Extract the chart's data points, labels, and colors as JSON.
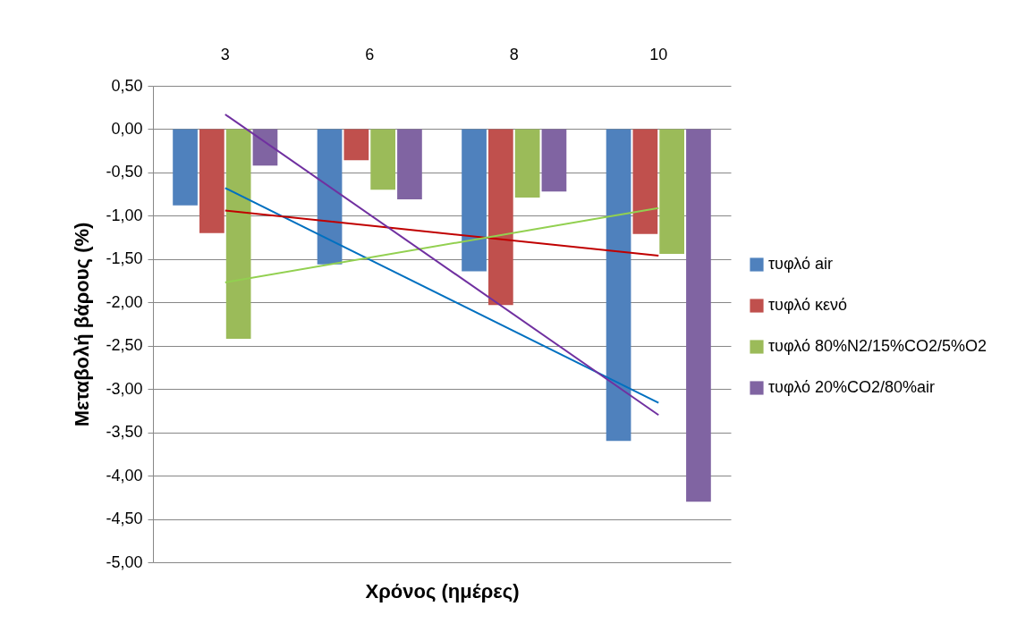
{
  "chart_data": {
    "type": "bar",
    "xlabel": "Χρόνος (ημέρες)",
    "ylabel": "Μεταβολή βάρους (%)",
    "categories": [
      "3",
      "6",
      "8",
      "10"
    ],
    "series": [
      {
        "name": "τυφλό air",
        "color": "#4f81bd",
        "values": [
          -0.88,
          -1.56,
          -1.64,
          -3.6
        ]
      },
      {
        "name": "τυφλό κενό",
        "color": "#c0504d",
        "values": [
          -1.2,
          -0.36,
          -2.03,
          -1.21
        ]
      },
      {
        "name": "τυφλό 80%N2/15%CO2/5%O2",
        "color": "#9bbb59",
        "values": [
          -2.42,
          -0.7,
          -0.79,
          -1.44
        ]
      },
      {
        "name": "τυφλό 20%CO2/80%air",
        "color": "#8064a2",
        "values": [
          -0.42,
          -0.81,
          -0.72,
          -4.3
        ]
      },
      {
        "type": "line",
        "color": "#0070c0",
        "x": [
          "3",
          "10"
        ],
        "values": [
          -0.68,
          -3.16
        ]
      },
      {
        "type": "line",
        "color": "#c00000",
        "x": [
          "3",
          "10"
        ],
        "values": [
          -0.94,
          -1.46
        ]
      },
      {
        "type": "line",
        "color": "#92d050",
        "x": [
          "3",
          "10"
        ],
        "values": [
          -1.77,
          -0.91
        ]
      },
      {
        "type": "line",
        "color": "#7030a0",
        "x": [
          "3",
          "10"
        ],
        "values": [
          0.17,
          -3.3
        ]
      }
    ],
    "ylim": [
      -5,
      0.5
    ],
    "yticks": [
      {
        "value": 0.5,
        "label": "0,50"
      },
      {
        "value": 0,
        "label": "0,00"
      },
      {
        "value": -0.5,
        "label": "-0,50"
      },
      {
        "value": -1,
        "label": "-1,00"
      },
      {
        "value": -1.5,
        "label": "-1,50"
      },
      {
        "value": -2,
        "label": "-2,00"
      },
      {
        "value": -2.5,
        "label": "-2,50"
      },
      {
        "value": -3,
        "label": "-3,00"
      },
      {
        "value": -3.5,
        "label": "-3,50"
      },
      {
        "value": -4,
        "label": "-4,00"
      },
      {
        "value": -4.5,
        "label": "-4,50"
      },
      {
        "value": -5,
        "label": "-5,00"
      }
    ],
    "grid": "y",
    "legend": "right"
  }
}
